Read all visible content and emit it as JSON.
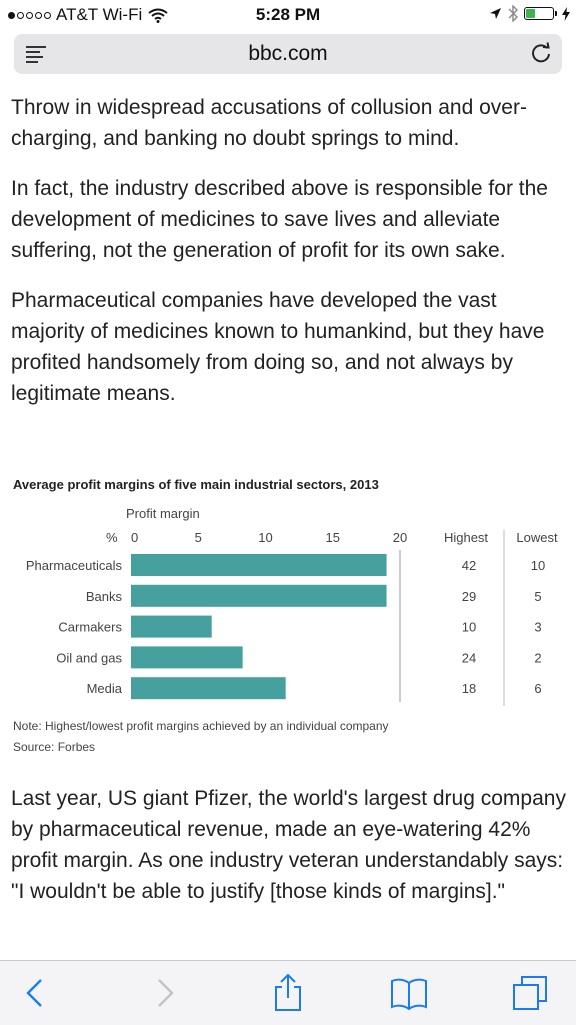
{
  "status_bar": {
    "carrier": "AT&T Wi-Fi",
    "signal_dots_filled": 1,
    "signal_dots_total": 5,
    "time": "5:28 PM",
    "battery_level": 0.35,
    "icons": [
      "wifi-icon",
      "location-arrow-icon",
      "bluetooth-icon",
      "battery-icon",
      "charging-icon"
    ]
  },
  "url_bar": {
    "domain": "bbc.com",
    "icons": [
      "reader-menu-icon",
      "reload-icon"
    ]
  },
  "article": {
    "paragraphs": [
      "Throw in widespread accusations of collusion and over-charging, and banking no doubt springs to mind.",
      "In fact, the industry described above is responsible for the development of medicines to save lives and alleviate suffering, not the generation of profit for its own sake.",
      "Pharmaceutical companies have developed the vast majority of medicines known to humankind, but they have profited handsomely from doing so, and not always by legitimate means."
    ],
    "after_chart": "Last year, US giant Pfizer, the world's largest drug company by pharmaceutical revenue, made an eye-watering 42% profit margin. As one industry veteran understandably says: \"I wouldn't be able to justify [those kinds of margins].\""
  },
  "chart_data": {
    "type": "bar",
    "orientation": "horizontal",
    "title": "Average profit margins of five main industrial sectors, 2013",
    "xlabel": "Profit margin",
    "unit_label": "%",
    "categories": [
      "Pharmaceuticals",
      "Banks",
      "Carmakers",
      "Oil and gas",
      "Media"
    ],
    "values": [
      19,
      19,
      6,
      8.3,
      11.5
    ],
    "xlim": [
      0,
      20
    ],
    "ticks": [
      "0",
      "5",
      "10",
      "15",
      "20"
    ],
    "bar_color": "#46a09e",
    "grid": false,
    "table_columns": [
      "Highest",
      "Lowest"
    ],
    "highest": [
      "42",
      "29",
      "10",
      "24",
      "18"
    ],
    "lowest": [
      "10",
      "5",
      "3",
      "2",
      "6"
    ],
    "note": "Note: Highest/lowest profit margins achieved by an individual company",
    "source": "Source: Forbes"
  },
  "toolbar": {
    "icons": [
      "back-icon",
      "forward-icon",
      "share-icon",
      "bookmarks-icon",
      "tabs-icon"
    ]
  }
}
